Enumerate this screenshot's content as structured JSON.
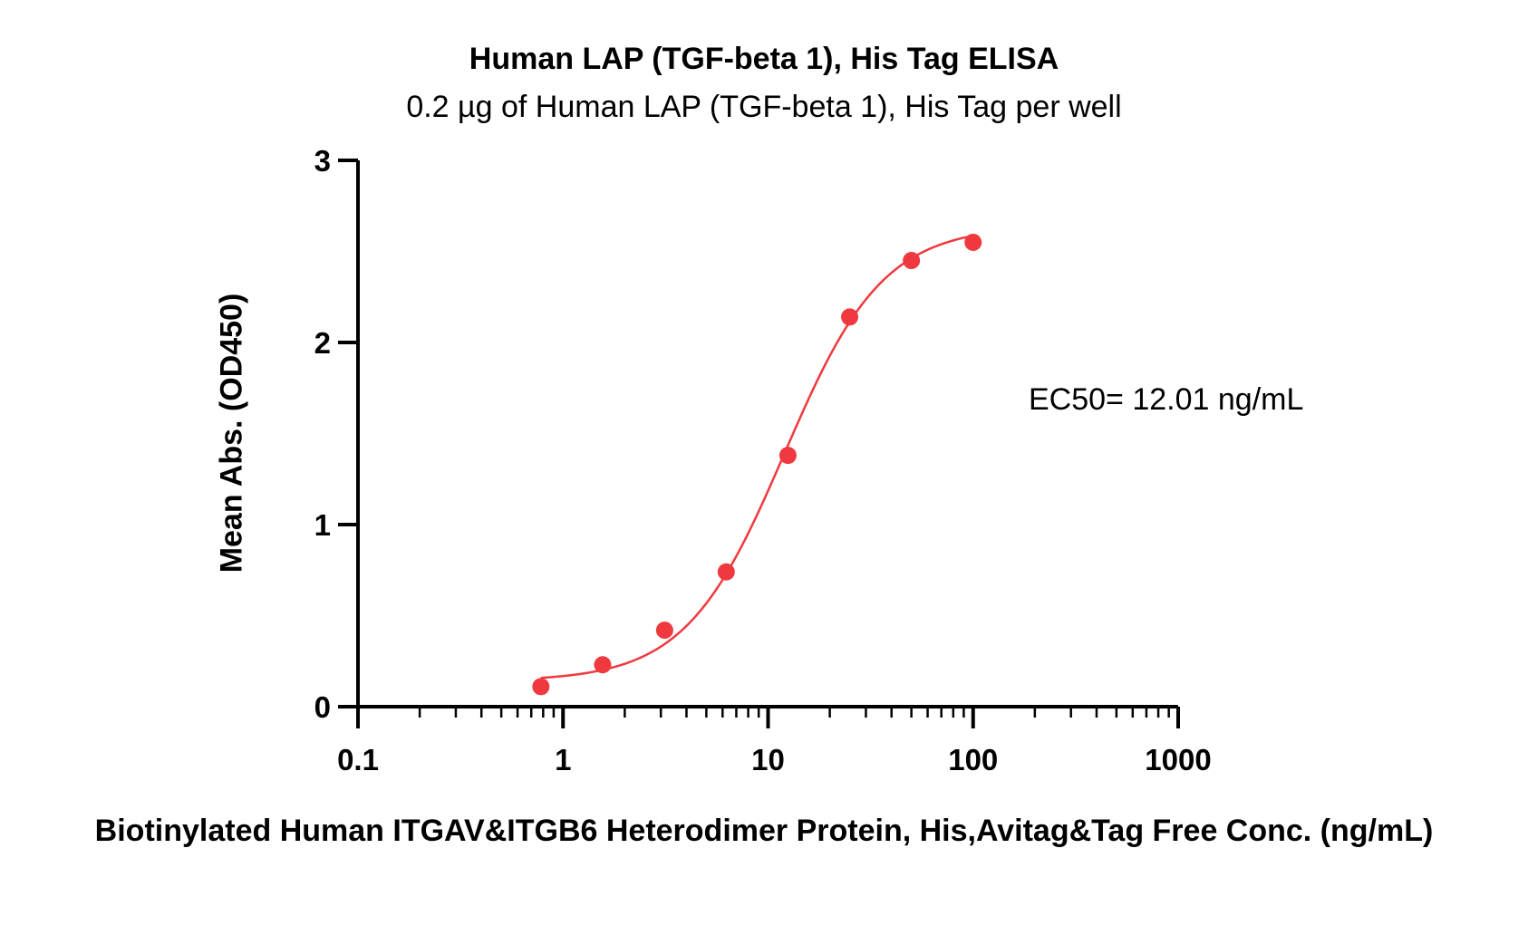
{
  "chart_data": {
    "type": "scatter",
    "title": "Human LAP (TGF-beta 1), His Tag ELISA",
    "subtitle": "0.2 µg of Human LAP (TGF-beta 1), His Tag per well",
    "xlabel": "Biotinylated Human ITGAV&ITGB6 Heterodimer Protein, His,Avitag&Tag Free Conc. (ng/mL)",
    "ylabel": "Mean Abs. (OD450)",
    "x_scale": "log",
    "xlim": [
      0.1,
      1000
    ],
    "ylim": [
      0,
      3
    ],
    "x_ticks": [
      "0.1",
      "1",
      "10",
      "100",
      "1000"
    ],
    "y_ticks": [
      "0",
      "1",
      "2",
      "3"
    ],
    "grid": false,
    "annotation": "EC50= 12.01 ng/mL",
    "series": [
      {
        "color": "#f0393f",
        "x": [
          0.78,
          1.56,
          3.13,
          6.25,
          12.5,
          25,
          50,
          100
        ],
        "y": [
          0.11,
          0.23,
          0.42,
          0.74,
          1.38,
          2.14,
          2.45,
          2.55
        ],
        "fit": {
          "model": "4PL",
          "bottom": 0.14,
          "top": 2.64,
          "ec50": 12.01,
          "hill": 1.8
        }
      }
    ]
  }
}
